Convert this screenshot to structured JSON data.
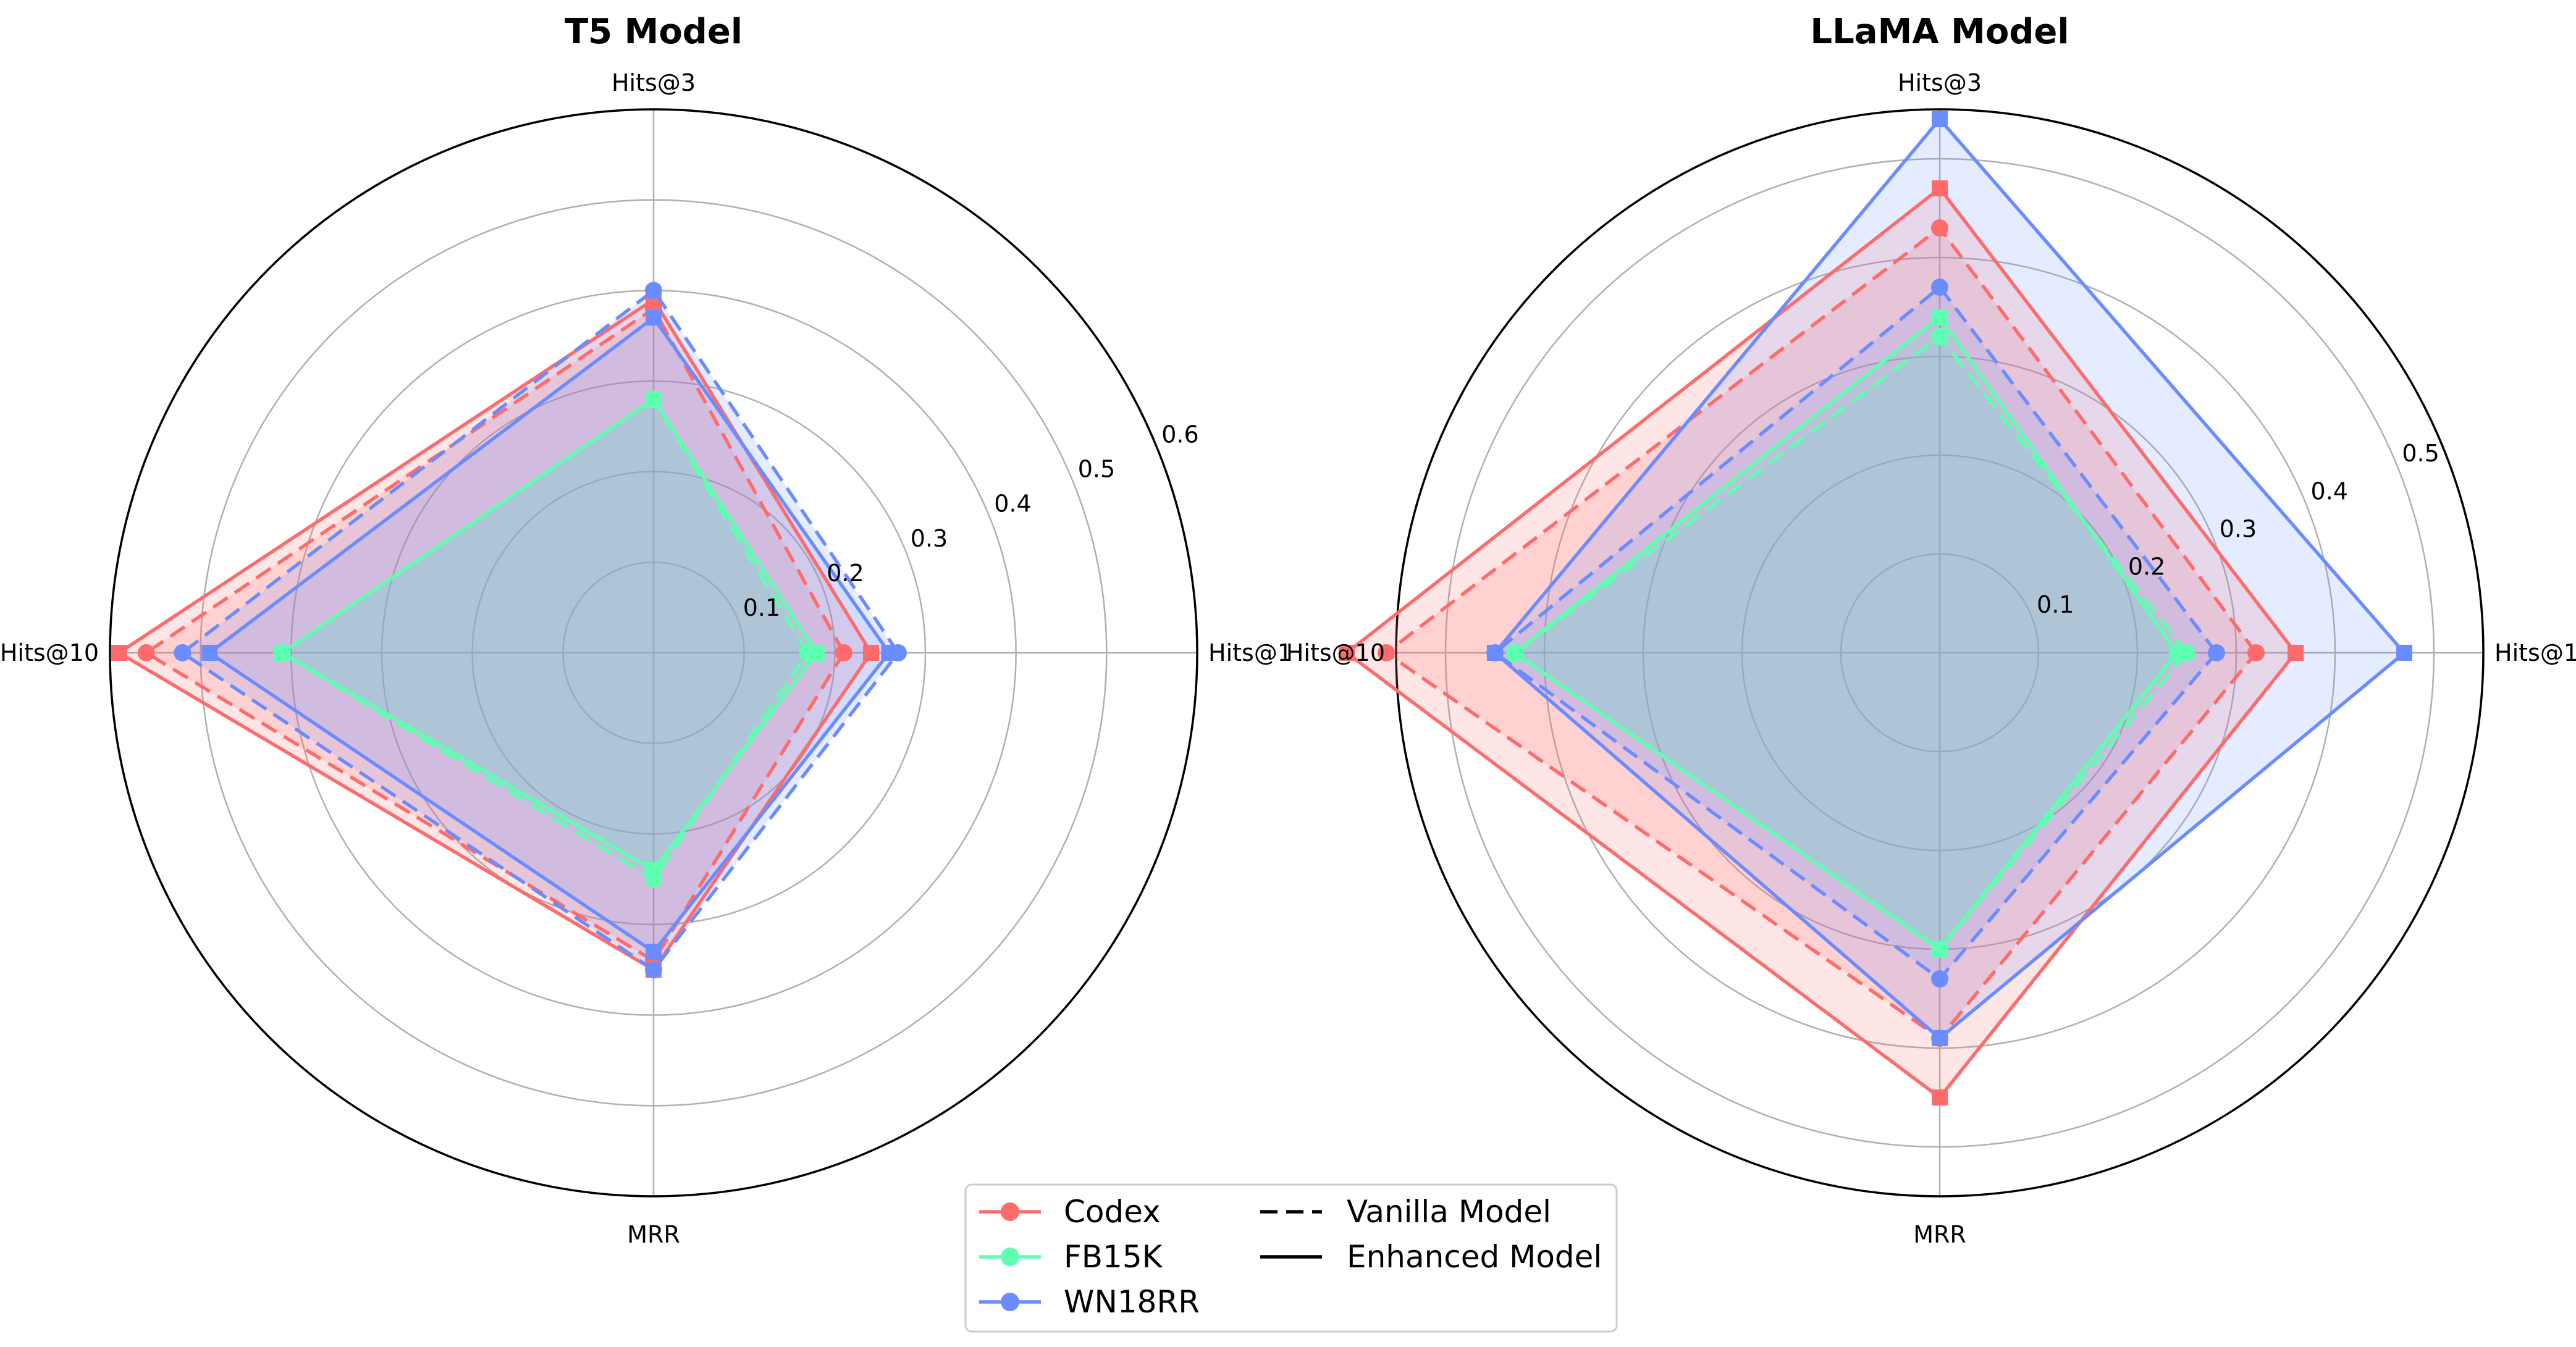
{
  "chart_data": [
    {
      "type": "radar",
      "title": "T5 Model",
      "axes": [
        "Hits@1",
        "Hits@3",
        "Hits@10",
        "MRR"
      ],
      "rlim": [
        0,
        0.6
      ],
      "rticks": [
        0.1,
        0.2,
        0.3,
        0.4,
        0.5,
        0.6
      ],
      "rtick_labels": [
        "0.1",
        "0.2",
        "0.3",
        "0.4",
        "0.5",
        "0.6"
      ],
      "grid": true,
      "series": [
        {
          "name": "Codex",
          "variant": "Vanilla Model",
          "color": "#ff6b6b",
          "values": [
            0.21,
            0.38,
            0.56,
            0.34
          ]
        },
        {
          "name": "Codex",
          "variant": "Enhanced Model",
          "color": "#ff6b6b",
          "values": [
            0.24,
            0.39,
            0.59,
            0.35
          ]
        },
        {
          "name": "FB15K",
          "variant": "Vanilla Model",
          "color": "#5effb0",
          "values": [
            0.17,
            0.28,
            0.41,
            0.25
          ]
        },
        {
          "name": "FB15K",
          "variant": "Enhanced Model",
          "color": "#5effb0",
          "values": [
            0.18,
            0.28,
            0.41,
            0.24
          ]
        },
        {
          "name": "WN18RR",
          "variant": "Vanilla Model",
          "color": "#6b8cff",
          "values": [
            0.27,
            0.4,
            0.52,
            0.35
          ]
        },
        {
          "name": "WN18RR",
          "variant": "Enhanced Model",
          "color": "#6b8cff",
          "values": [
            0.26,
            0.37,
            0.49,
            0.33
          ]
        }
      ]
    },
    {
      "type": "radar",
      "title": "LLaMA Model",
      "axes": [
        "Hits@1",
        "Hits@3",
        "Hits@10",
        "MRR"
      ],
      "rlim": [
        0,
        0.55
      ],
      "rticks": [
        0.1,
        0.2,
        0.3,
        0.4,
        0.5
      ],
      "rtick_labels": [
        "0.1",
        "0.2",
        "0.3",
        "0.4",
        "0.5"
      ],
      "grid": true,
      "series": [
        {
          "name": "Codex",
          "variant": "Vanilla Model",
          "color": "#ff6b6b",
          "values": [
            0.32,
            0.43,
            0.56,
            0.39
          ]
        },
        {
          "name": "Codex",
          "variant": "Enhanced Model",
          "color": "#ff6b6b",
          "values": [
            0.36,
            0.47,
            0.6,
            0.45
          ]
        },
        {
          "name": "FB15K",
          "variant": "Vanilla Model",
          "color": "#5effb0",
          "values": [
            0.25,
            0.32,
            0.43,
            0.3
          ]
        },
        {
          "name": "FB15K",
          "variant": "Enhanced Model",
          "color": "#5effb0",
          "values": [
            0.24,
            0.34,
            0.43,
            0.3
          ]
        },
        {
          "name": "WN18RR",
          "variant": "Vanilla Model",
          "color": "#6b8cff",
          "values": [
            0.28,
            0.37,
            0.45,
            0.33
          ]
        },
        {
          "name": "WN18RR",
          "variant": "Enhanced Model",
          "color": "#6b8cff",
          "values": [
            0.47,
            0.54,
            0.45,
            0.39
          ]
        }
      ]
    }
  ],
  "legend": {
    "placement": "lower-center",
    "datasets": [
      {
        "label": "Codex",
        "color": "#ff6b6b"
      },
      {
        "label": "FB15K",
        "color": "#5effb0"
      },
      {
        "label": "WN18RR",
        "color": "#6b8cff"
      }
    ],
    "styles": [
      {
        "label": "Vanilla Model",
        "dash": "dashed"
      },
      {
        "label": "Enhanced Model",
        "dash": "solid"
      }
    ]
  }
}
